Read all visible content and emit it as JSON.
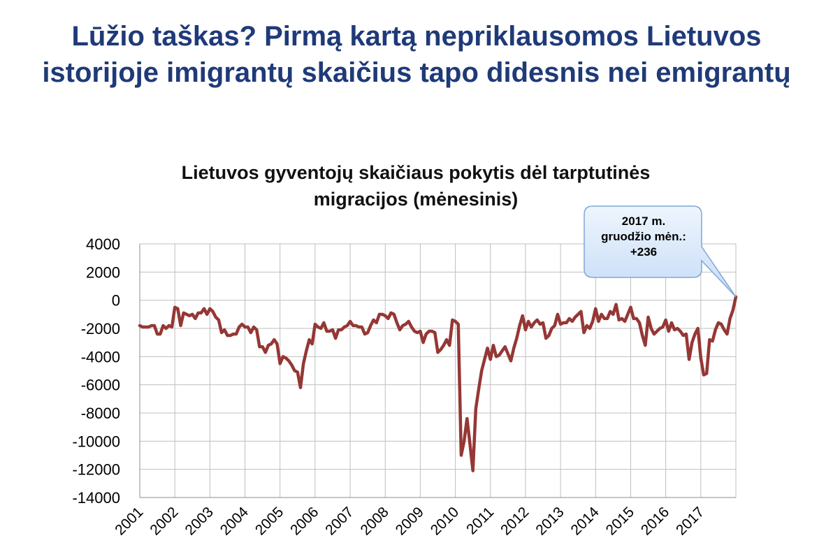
{
  "headline": {
    "line1": "Lūžio taškas? Pirmą kartą nepriklausomos Lietuvos",
    "line2": "istorijoje imigrantų skaičius tapo didesnis nei emigrantų"
  },
  "chart_data": {
    "type": "line",
    "title_line1": "Lietuvos gyventojų skaičiaus pokytis dėl tarptutinės",
    "title_line2": "migracijos (mėnesinis)",
    "xlabel": "",
    "ylabel": "",
    "ylim": [
      -14000,
      4000
    ],
    "yticks": [
      4000,
      2000,
      0,
      -2000,
      -4000,
      -6000,
      -8000,
      -10000,
      -12000,
      -14000
    ],
    "xticks": [
      "2001",
      "2002",
      "2003",
      "2004",
      "2005",
      "2006",
      "2007",
      "2008",
      "2009",
      "2010",
      "2011",
      "2012",
      "2013",
      "2014",
      "2015",
      "2016",
      "2017"
    ],
    "grid": true,
    "colors": {
      "line": "#953735",
      "grid": "#bfbfbf",
      "title": "#1f3a78",
      "callout": "#c6dcf7"
    },
    "series": [
      {
        "values": [
          -1800,
          -1900,
          -1900,
          -1900,
          -1800,
          -1800,
          -2400,
          -2400,
          -1800,
          -2000,
          -1800,
          -1900,
          -500,
          -600,
          -1800,
          -900,
          -1000,
          -1100,
          -1000,
          -1300,
          -900,
          -900,
          -600,
          -1000,
          -600,
          -800,
          -1200,
          -1400,
          -2300,
          -2100,
          -2500,
          -2500,
          -2400,
          -2400,
          -1900,
          -1700,
          -1900,
          -1900,
          -2300,
          -1900,
          -2100,
          -3300,
          -3300,
          -3700,
          -3200,
          -3100,
          -2800,
          -3100,
          -4500,
          -4000,
          -4100,
          -4300,
          -4600,
          -5000,
          -5100,
          -6200,
          -4500,
          -3600,
          -2800,
          -3100,
          -1700,
          -1900,
          -2000,
          -1600,
          -2200,
          -2200,
          -2100,
          -2700,
          -2100,
          -2100,
          -1900,
          -1800,
          -1500,
          -1800,
          -1800,
          -1900,
          -1900,
          -2400,
          -2300,
          -1800,
          -1400,
          -1600,
          -1000,
          -1000,
          -1100,
          -1300,
          -900,
          -1000,
          -1600,
          -2100,
          -1800,
          -1700,
          -1500,
          -1900,
          -2200,
          -2300,
          -2200,
          -3000,
          -2400,
          -2200,
          -2200,
          -2300,
          -3700,
          -3500,
          -3200,
          -2800,
          -3200,
          -1400,
          -1500,
          -1700,
          -11000,
          -10000,
          -8400,
          -10200,
          -12100,
          -7700,
          -6300,
          -5000,
          -4200,
          -3400,
          -4200,
          -3200,
          -4000,
          -3900,
          -3600,
          -3300,
          -3800,
          -4300,
          -3400,
          -2700,
          -1800,
          -1100,
          -2100,
          -1500,
          -1900,
          -1600,
          -1400,
          -1700,
          -1600,
          -2700,
          -2500,
          -2000,
          -1800,
          -1000,
          -1700,
          -1600,
          -1600,
          -1300,
          -1500,
          -1200,
          -1000,
          -800,
          -2300,
          -1800,
          -2000,
          -1500,
          -600,
          -1500,
          -1000,
          -1300,
          -1300,
          -800,
          -1000,
          -300,
          -1400,
          -1300,
          -1500,
          -1000,
          -500,
          -1300,
          -1300,
          -1600,
          -2500,
          -3200,
          -1200,
          -2000,
          -2400,
          -2200,
          -2000,
          -1900,
          -1400,
          -2200,
          -1600,
          -2100,
          -2000,
          -2200,
          -2500,
          -2400,
          -4200,
          -3000,
          -2400,
          -2000,
          -4100,
          -5300,
          -5200,
          -2800,
          -2900,
          -2100,
          -1600,
          -1700,
          -2100,
          -2400,
          -1300,
          -700,
          236
        ]
      }
    ],
    "annotation": {
      "line1": "2017 m.",
      "line2": "gruodžio mėn.:",
      "line3": "+236"
    }
  }
}
